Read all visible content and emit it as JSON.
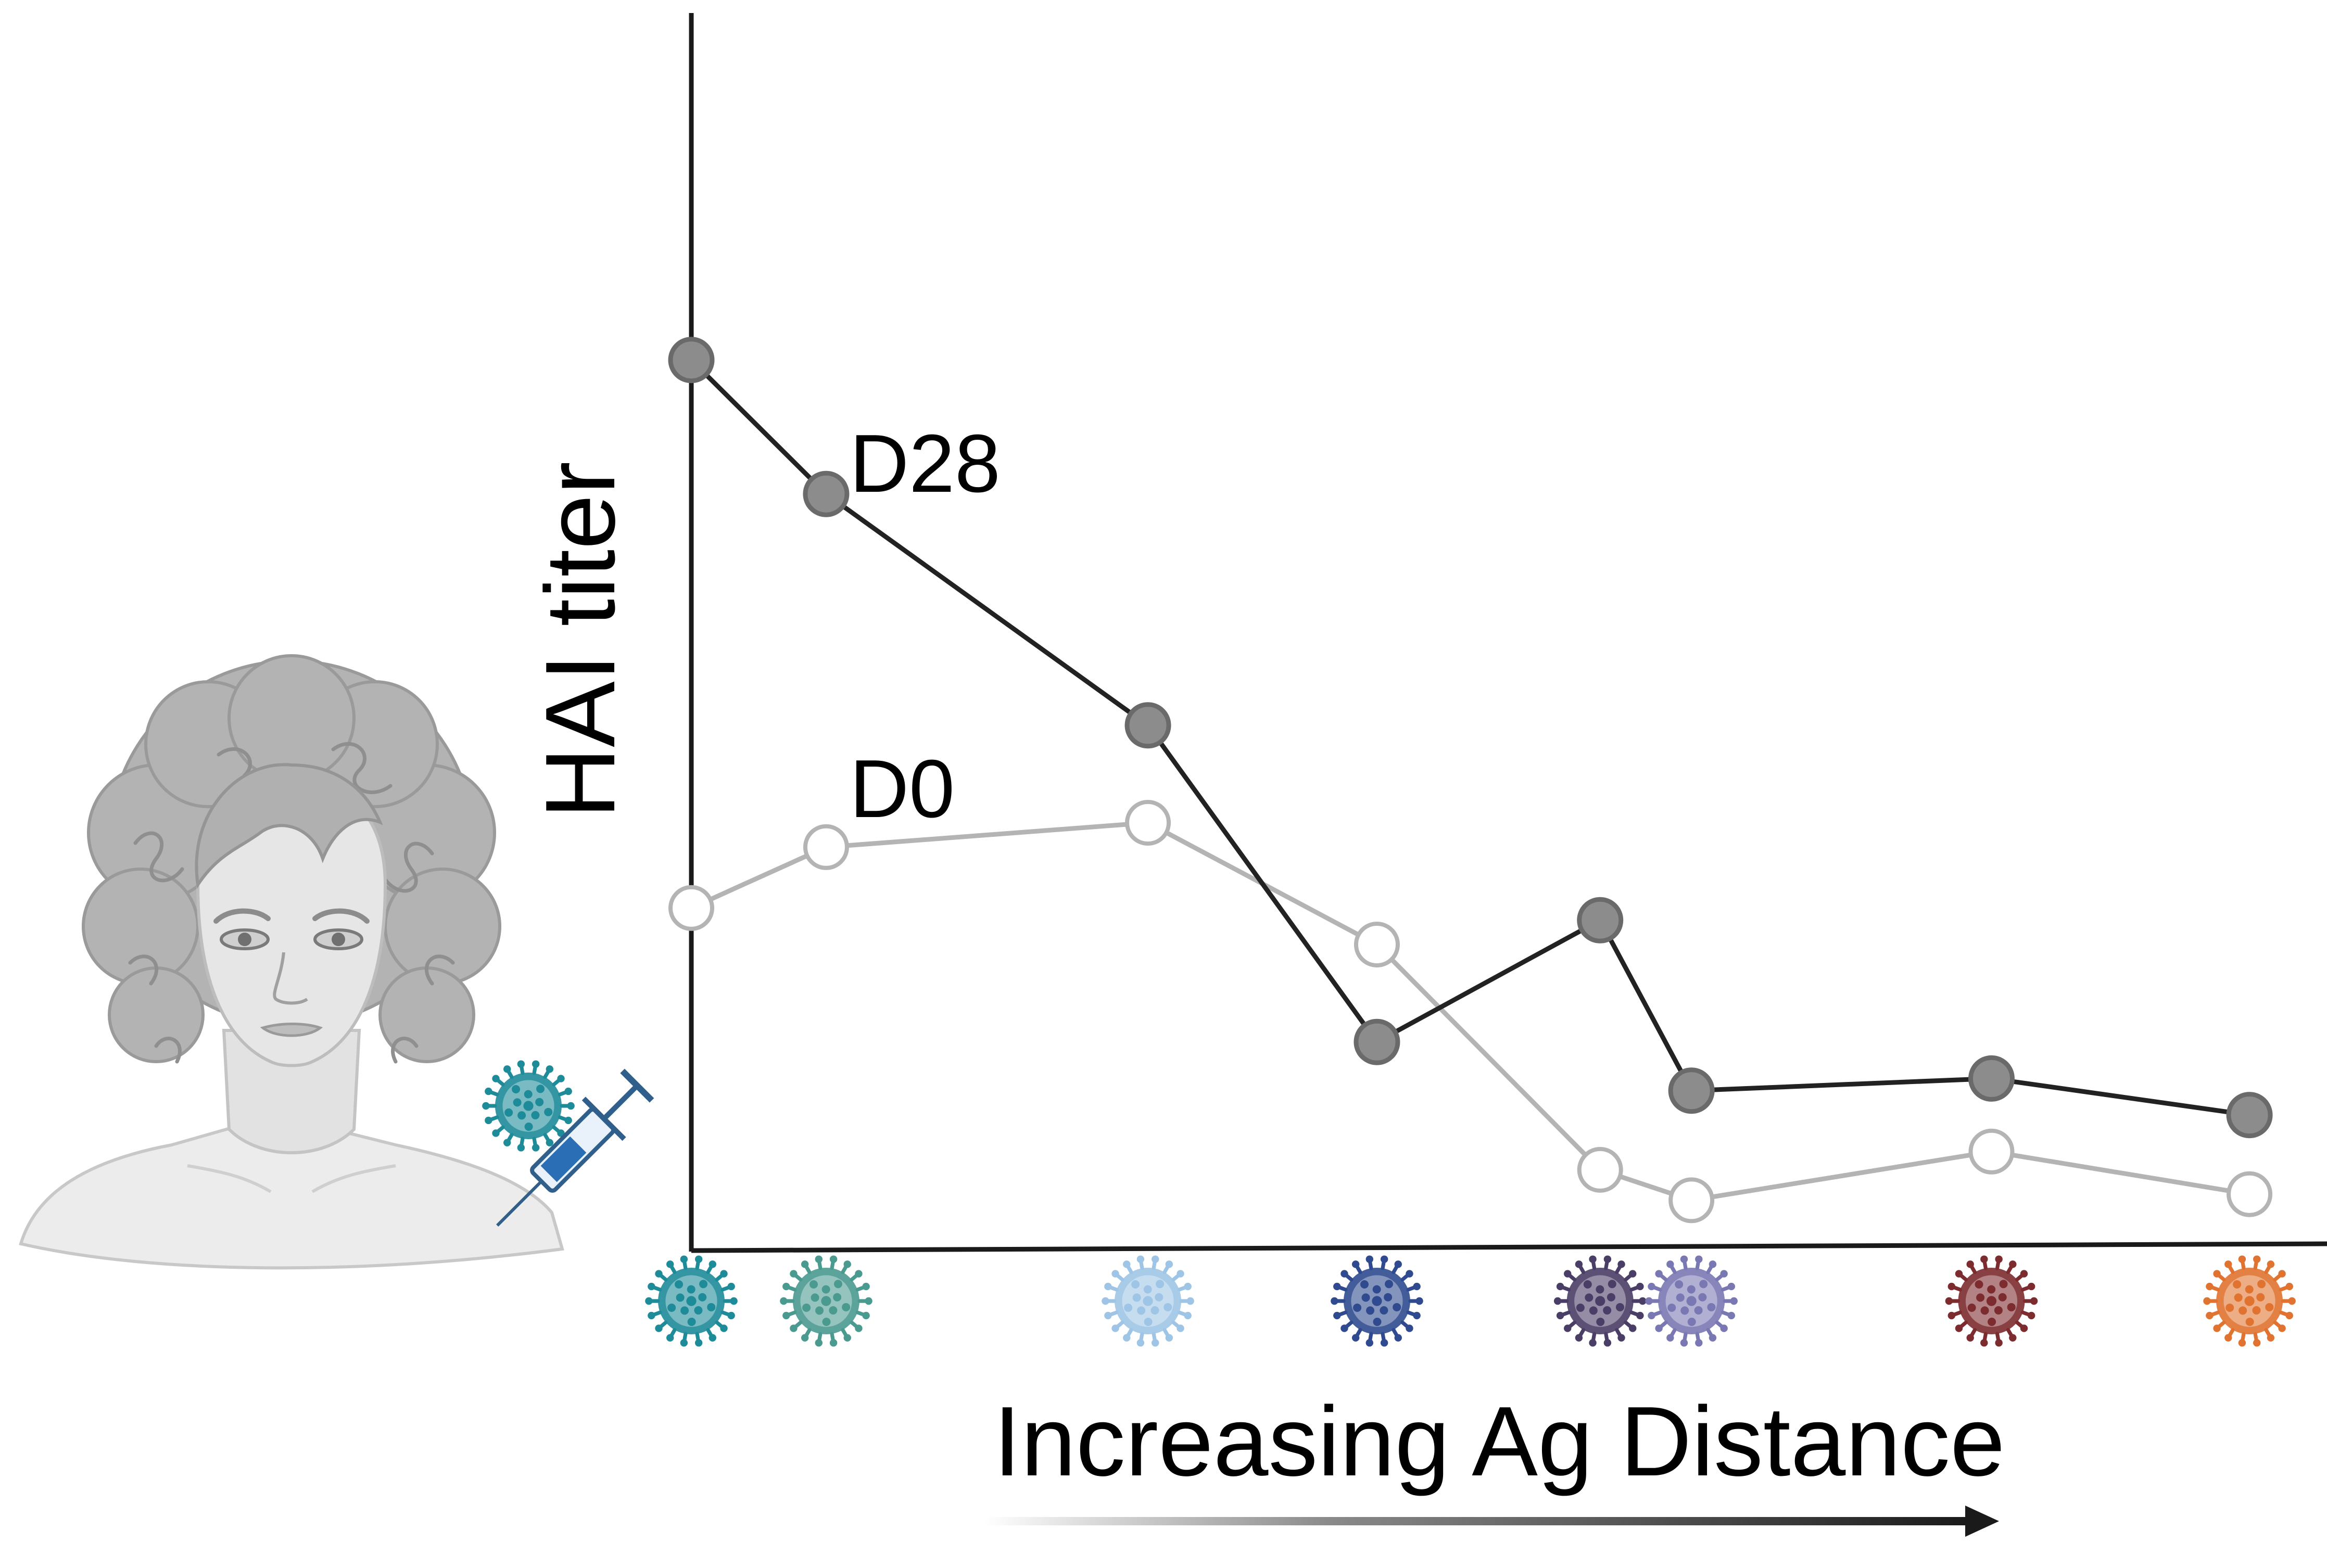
{
  "chart_data": {
    "type": "line",
    "title": "",
    "xlabel": "Increasing Ag Distance",
    "ylabel": "HAI titer",
    "xlim": [
      0,
      10.8
    ],
    "ylim": [
      0,
      10
    ],
    "x": [
      0,
      0.93,
      3.15,
      4.73,
      6.27,
      6.9,
      8.97,
      10.75
    ],
    "series": [
      {
        "name": "D28",
        "values": [
          7.3,
          6.2,
          4.3,
          1.7,
          2.7,
          1.3,
          1.4,
          1.1
        ],
        "color": "#222222",
        "marker": "filled"
      },
      {
        "name": "D0",
        "values": [
          2.8,
          3.3,
          3.5,
          2.5,
          0.65,
          0.4,
          0.8,
          0.45
        ],
        "color": "#b4b4b4",
        "marker": "hollow"
      }
    ],
    "tick_icons": [
      {
        "name": "virus-strain-1-icon",
        "color": "#1e8b99"
      },
      {
        "name": "virus-strain-2-icon",
        "color": "#4a9a90"
      },
      {
        "name": "virus-strain-3-icon",
        "color": "#9ec5e6"
      },
      {
        "name": "virus-strain-4-icon",
        "color": "#2f4a8f"
      },
      {
        "name": "virus-strain-5-icon",
        "color": "#4a3e66"
      },
      {
        "name": "virus-strain-6-icon",
        "color": "#7a78b3"
      },
      {
        "name": "virus-strain-7-icon",
        "color": "#7c2b2e"
      },
      {
        "name": "virus-strain-8-icon",
        "color": "#e07330"
      }
    ],
    "grid": false,
    "legend": "inline labels"
  },
  "illustration": {
    "person": "person-portrait-icon",
    "vaccine_virus": {
      "name": "vaccine-virus-icon",
      "color": "#1e8b99"
    },
    "syringe": {
      "name": "syringe-icon",
      "color": "#2a6fb5"
    }
  }
}
